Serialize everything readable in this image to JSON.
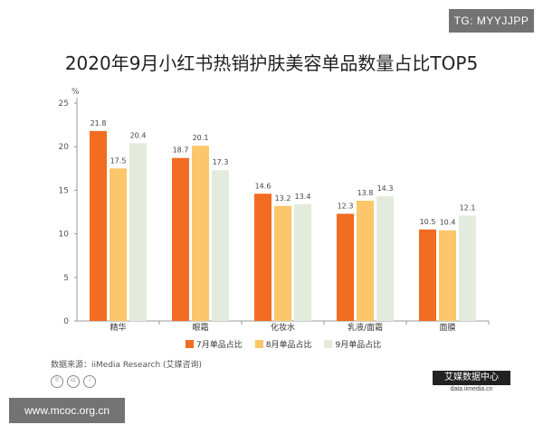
{
  "watermark_top": "TG: MYYJJPP",
  "watermark_bottom": "www.mcoc.org.cn",
  "source": "数据来源：iiMedia Research (艾媒咨询)",
  "brand": {
    "name": "艾媒数据中心",
    "url": "data.iimedia.cn"
  },
  "cc_icons": [
    "©",
    "cc",
    "i"
  ],
  "colors": {
    "jul": "#f26c22",
    "aug": "#fbc76a",
    "sep": "#e2ebdc",
    "axis": "#555555",
    "label": "#444444"
  },
  "chart_data": {
    "type": "bar",
    "title": "2020年9月小红书热销护肤美容单品数量占比TOP5",
    "ylabel": "%",
    "xlabel": "",
    "ylim": [
      0,
      25
    ],
    "yticks": [
      0,
      5,
      10,
      15,
      20,
      25
    ],
    "categories": [
      "精华",
      "眼霜",
      "化妆水",
      "乳液/面霜",
      "面膜"
    ],
    "series": [
      {
        "name": "7月单品占比",
        "values": [
          21.8,
          18.7,
          14.6,
          12.3,
          10.5
        ],
        "color": "#f26c22"
      },
      {
        "name": "8月单品占比",
        "values": [
          17.5,
          20.1,
          13.2,
          13.8,
          10.4
        ],
        "color": "#fbc76a"
      },
      {
        "name": "9月单品占比",
        "values": [
          20.4,
          17.3,
          13.4,
          14.3,
          12.1
        ],
        "color": "#e2ebdc"
      }
    ],
    "grid": false,
    "legend": "bottom"
  }
}
